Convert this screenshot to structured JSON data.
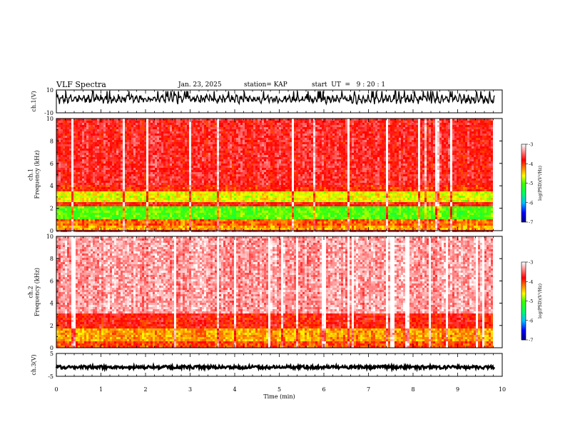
{
  "header": {
    "title": "VLF Spectra",
    "date": "Jan. 23, 2025",
    "station": "station= KAP",
    "start": "start  UT  =   9 : 20 : 1"
  },
  "chart_data": [
    {
      "type": "line",
      "name": "ch1-waveform",
      "ylabel": "ch.1(V)",
      "ylim": [
        -10,
        10
      ],
      "yticks": [
        "10",
        "-10"
      ],
      "xlim": [
        0,
        10
      ],
      "data_end_min": 9.83,
      "amplitude_range": [
        -3,
        9
      ],
      "color": "#000000"
    },
    {
      "type": "heatmap",
      "name": "ch1-spectrogram",
      "ylabel": "ch.1\nFrequency  (kHz)",
      "ylim": [
        0,
        10
      ],
      "yticks": [
        "0",
        "2",
        "4",
        "6",
        "8",
        "10"
      ],
      "xlim": [
        0,
        10
      ],
      "data_end_min": 9.83,
      "colorbar": {
        "label": "log(PSD)(V²/Hz)",
        "range": [
          -7,
          -3
        ],
        "ticks": [
          "-3",
          "-4",
          "-5",
          "-6",
          "-7"
        ]
      },
      "bands": [
        {
          "kHz": [
            0,
            0.5
          ],
          "level": -4.3
        },
        {
          "kHz": [
            0.5,
            1.0
          ],
          "level": -4.1
        },
        {
          "kHz": [
            1.0,
            2.1
          ],
          "level": -5.0
        },
        {
          "kHz": [
            2.1,
            2.5
          ],
          "level": -3.8
        },
        {
          "kHz": [
            2.5,
            3.5
          ],
          "level": -4.6
        },
        {
          "kHz": [
            3.5,
            4.0
          ],
          "level": -3.9
        },
        {
          "kHz": [
            4.0,
            10.0
          ],
          "level": -3.7
        }
      ]
    },
    {
      "type": "heatmap",
      "name": "ch2-spectrogram",
      "ylabel": "ch.2\nFrequency  (kHz)",
      "ylim": [
        0,
        10
      ],
      "yticks": [
        "0",
        "2",
        "4",
        "6",
        "8",
        "10"
      ],
      "xlim": [
        0,
        10
      ],
      "data_end_min": 9.83,
      "colorbar": {
        "label": "log(PSD)(V²/Hz)",
        "range": [
          -7,
          -3
        ],
        "ticks": [
          "-3",
          "-4",
          "-5",
          "-6",
          "-7"
        ]
      },
      "bands": [
        {
          "kHz": [
            0,
            0.5
          ],
          "level": -4.0
        },
        {
          "kHz": [
            0.5,
            1.8
          ],
          "level": -4.3
        },
        {
          "kHz": [
            1.8,
            3.0
          ],
          "level": -3.8
        },
        {
          "kHz": [
            3.0,
            10.0
          ],
          "level": -3.3
        }
      ]
    },
    {
      "type": "line",
      "name": "ch3-waveform",
      "ylabel": "ch.3(V)",
      "ylim": [
        -5,
        5
      ],
      "yticks": [
        "5",
        "-5"
      ],
      "xlim": [
        0,
        10
      ],
      "data_end_min": 9.83,
      "level": -1,
      "amplitude": 0.7,
      "color": "#000000"
    }
  ],
  "xaxis": {
    "label": "Time  (min)",
    "ticks": [
      "0",
      "1",
      "2",
      "3",
      "4",
      "5",
      "6",
      "7",
      "8",
      "9",
      "10"
    ]
  },
  "colors": {
    "scale": [
      "#000080",
      "#0000ff",
      "#00c0ff",
      "#00ff60",
      "#40ff00",
      "#ffff00",
      "#ff8000",
      "#ff0000",
      "#ffffff"
    ]
  }
}
